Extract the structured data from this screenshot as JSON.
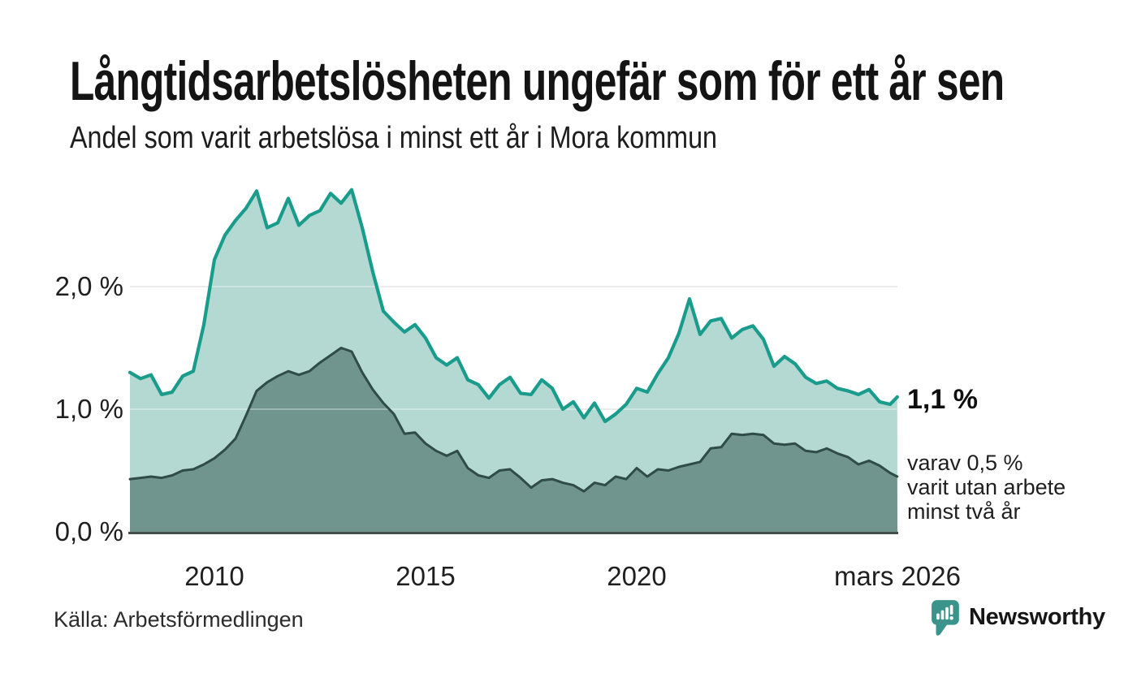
{
  "header": {
    "title": "Långtidsarbetslösheten ungefär som för ett år sen",
    "subtitle": "Andel som varit arbetslösa i minst ett år i Mora kommun"
  },
  "chart_data": {
    "type": "area",
    "unit": "%",
    "title": "Långtidsarbetslösheten ungefär som för ett år sen",
    "subtitle": "Andel som varit arbetslösa i minst ett år i Mora kommun",
    "grid": "horizontal-only",
    "legend": "none",
    "y_axis": {
      "min": 0.0,
      "max": 2.9,
      "ticks": [
        {
          "value": 2.0,
          "label": "2,0 %"
        },
        {
          "value": 1.0,
          "label": "1,0 %"
        },
        {
          "value": 0.0,
          "label": "0,0 %"
        }
      ]
    },
    "x_axis": {
      "start": "2008",
      "end": "mars 2026",
      "ticks": [
        {
          "x": 2010.0,
          "label": "2010"
        },
        {
          "x": 2015.0,
          "label": "2015"
        },
        {
          "x": 2020.0,
          "label": "2020"
        },
        {
          "x": 2026.17,
          "label": "mars 2026"
        }
      ]
    },
    "sampling": {
      "start": 2008.0,
      "step_years": 0.25,
      "final_x": 2026.17
    },
    "series": [
      {
        "id": "minst-ett-ar",
        "name": "Andel som varit arbetslösa i minst ett år",
        "line_color": "#1a9c8c",
        "fill_color": "#b4d9d2",
        "latest_label": "1,1 %",
        "values": [
          1.3,
          1.25,
          1.28,
          1.12,
          1.14,
          1.27,
          1.31,
          1.69,
          2.22,
          2.42,
          2.54,
          2.64,
          2.78,
          2.48,
          2.52,
          2.72,
          2.5,
          2.58,
          2.62,
          2.76,
          2.68,
          2.79,
          2.48,
          2.12,
          1.8,
          1.71,
          1.63,
          1.69,
          1.58,
          1.42,
          1.36,
          1.42,
          1.24,
          1.2,
          1.09,
          1.2,
          1.26,
          1.13,
          1.12,
          1.24,
          1.17,
          1.0,
          1.06,
          0.93,
          1.05,
          0.9,
          0.96,
          1.04,
          1.17,
          1.14,
          1.29,
          1.42,
          1.62,
          1.9,
          1.61,
          1.72,
          1.74,
          1.58,
          1.65,
          1.68,
          1.57,
          1.35,
          1.43,
          1.37,
          1.26,
          1.21,
          1.23,
          1.17,
          1.15,
          1.12,
          1.16,
          1.06,
          1.04,
          1.1
        ]
      },
      {
        "id": "minst-tva-ar",
        "name": "varav varit utan arbete minst två år",
        "line_color": "#2f4c46",
        "fill_color": "#6f958e",
        "latest_label": "0,5 %",
        "values": [
          0.43,
          0.44,
          0.45,
          0.44,
          0.46,
          0.5,
          0.51,
          0.55,
          0.6,
          0.67,
          0.76,
          0.95,
          1.15,
          1.22,
          1.27,
          1.31,
          1.28,
          1.31,
          1.38,
          1.44,
          1.5,
          1.47,
          1.3,
          1.16,
          1.05,
          0.96,
          0.8,
          0.81,
          0.72,
          0.66,
          0.62,
          0.66,
          0.52,
          0.46,
          0.44,
          0.5,
          0.51,
          0.44,
          0.36,
          0.42,
          0.43,
          0.4,
          0.38,
          0.33,
          0.4,
          0.38,
          0.45,
          0.43,
          0.52,
          0.45,
          0.51,
          0.5,
          0.53,
          0.55,
          0.57,
          0.68,
          0.69,
          0.8,
          0.79,
          0.8,
          0.79,
          0.72,
          0.71,
          0.72,
          0.66,
          0.65,
          0.68,
          0.64,
          0.61,
          0.55,
          0.58,
          0.54,
          0.48,
          0.45
        ]
      }
    ],
    "annotations": {
      "latest_total": "1,1 %",
      "detail_lines": [
        "varav 0,5 %",
        "varit utan arbete",
        "minst två år"
      ]
    }
  },
  "footer": {
    "source": "Källa: Arbetsförmedlingen",
    "brand": "Newsworthy",
    "brand_color": "#3b948b"
  }
}
